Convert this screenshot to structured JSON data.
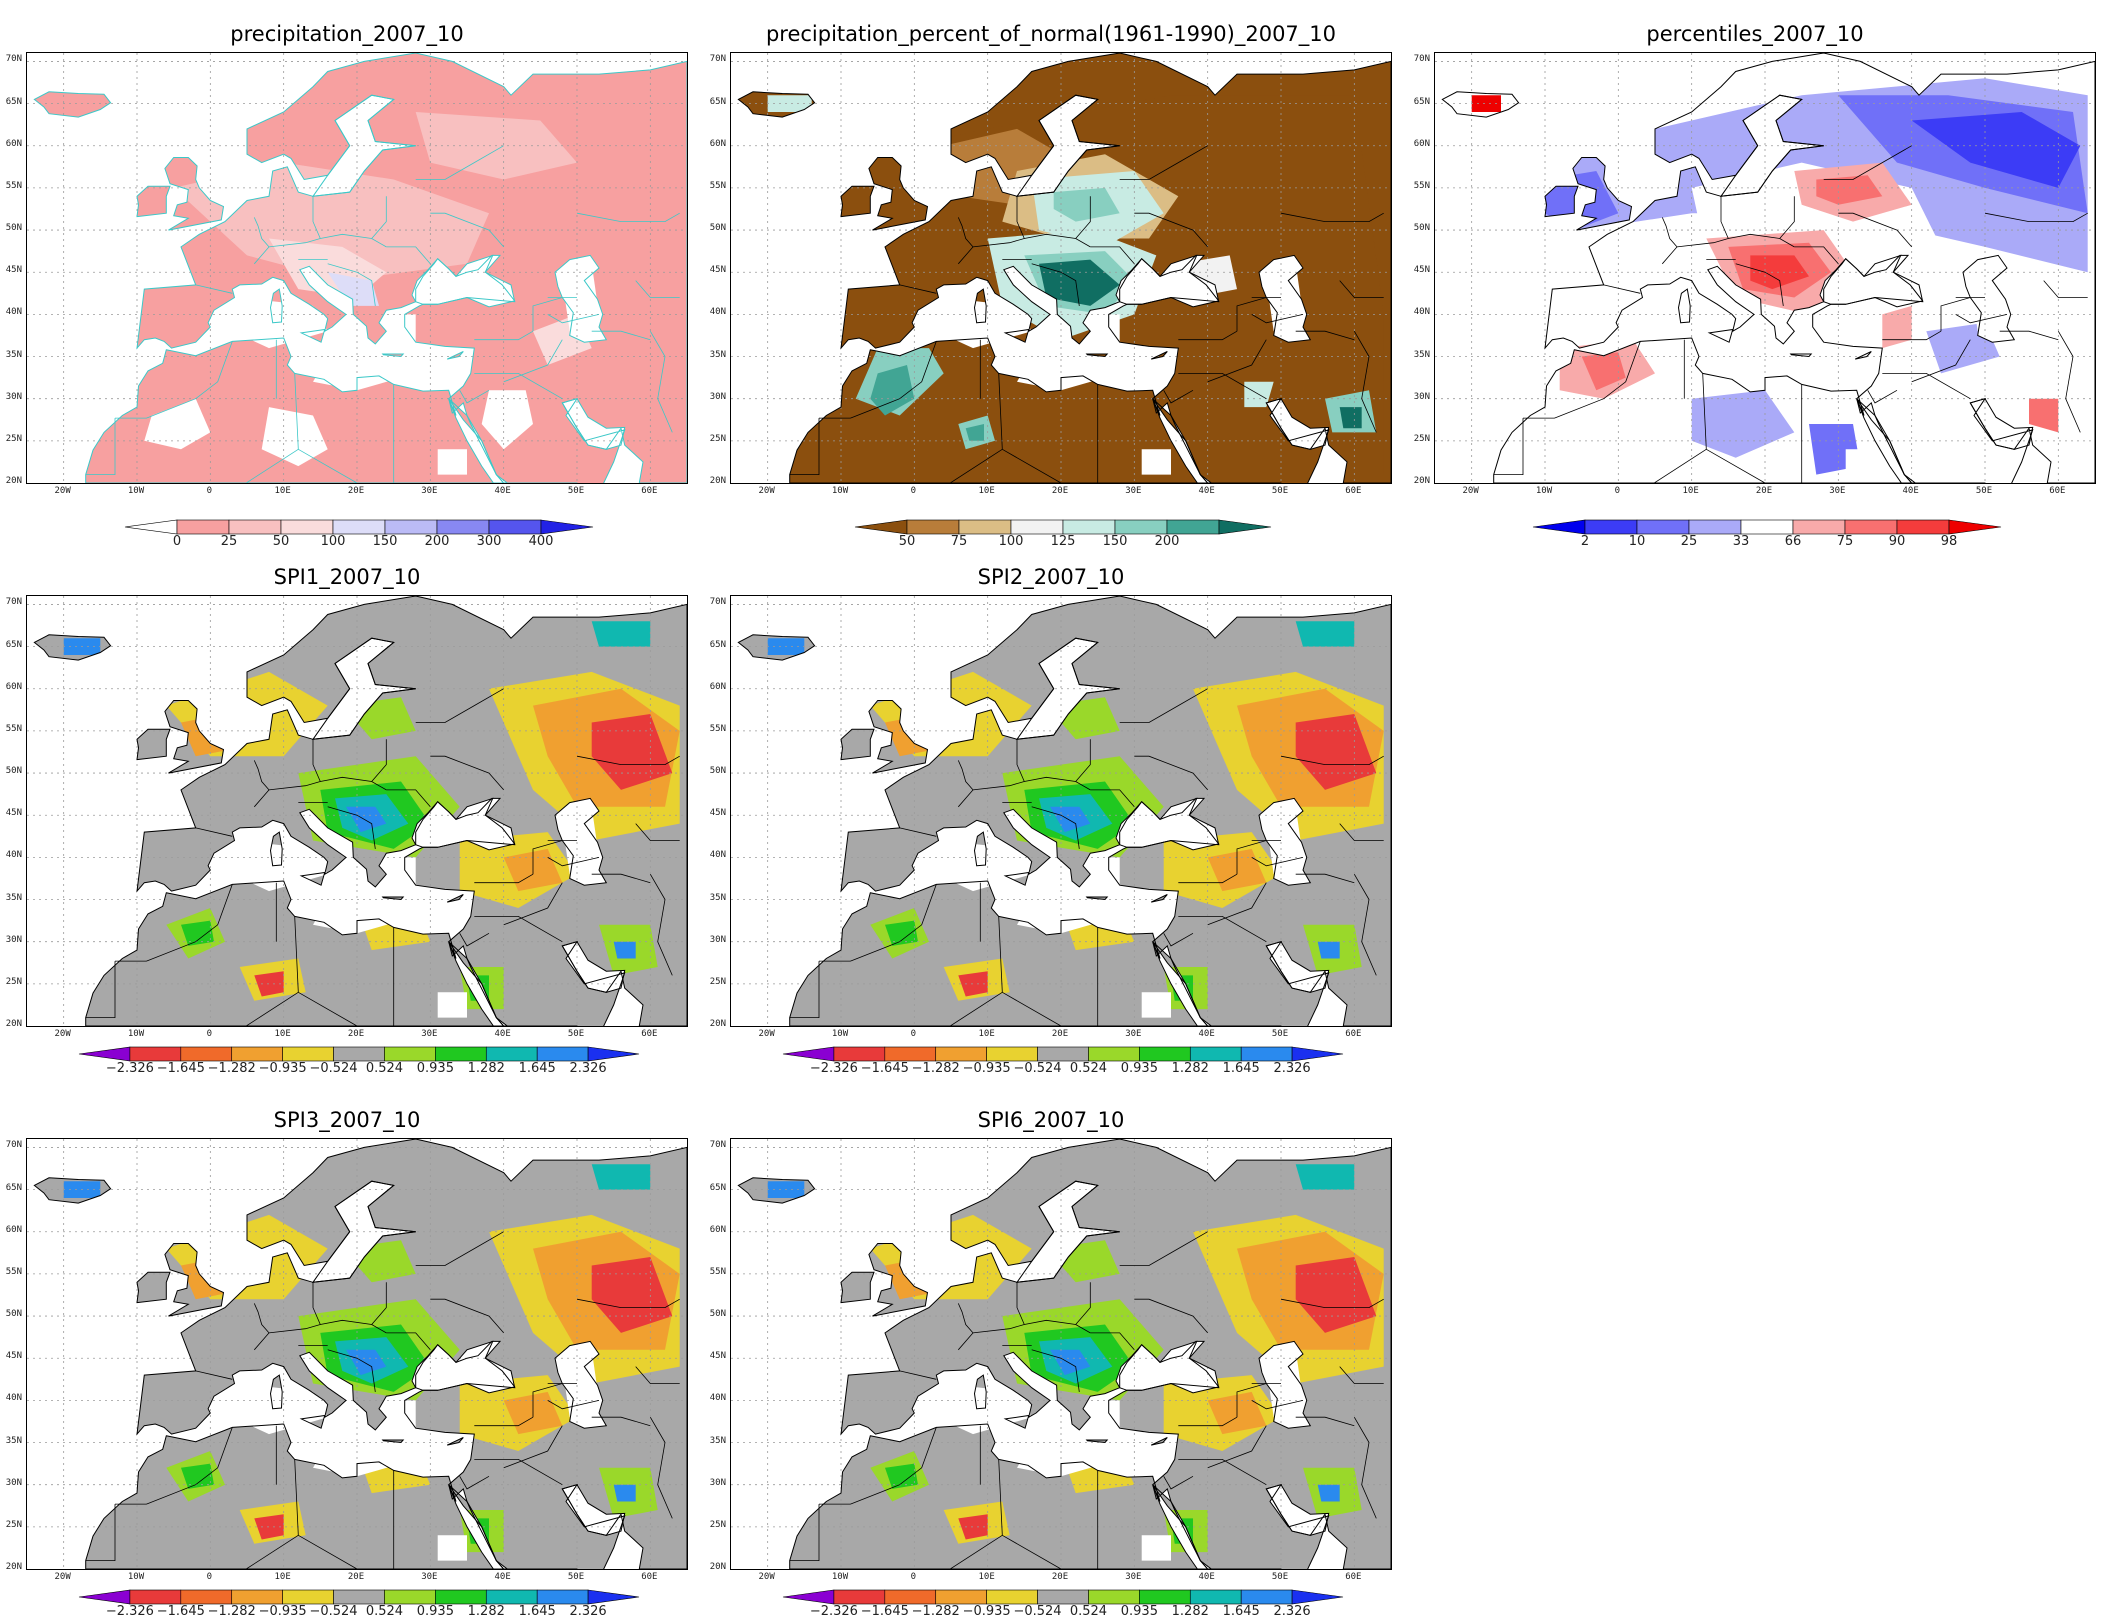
{
  "panels": [
    {
      "title": "precipitation_2007_10",
      "palette": "precip",
      "colorbar": {
        "labels": [
          "0",
          "25",
          "50",
          "100",
          "150",
          "200",
          "300",
          "400"
        ],
        "colors": [
          "#ffffff",
          "#f7a0a0",
          "#f8c0c0",
          "#fadcdc",
          "#ddddf8",
          "#bbbbf6",
          "#8888f2",
          "#5555ee",
          "#2222e6"
        ]
      }
    },
    {
      "title": "precipitation_percent_of_normal(1961-1990)_2007_10",
      "palette": "pct",
      "colorbar": {
        "labels": [
          "50",
          "75",
          "100",
          "125",
          "150",
          "200"
        ],
        "colors": [
          "#8b4f0e",
          "#b87d3a",
          "#dbbd85",
          "#f2f2f2",
          "#c8ebe3",
          "#88cfc0",
          "#41a594",
          "#106e62"
        ]
      }
    },
    {
      "title": "percentiles_2007_10",
      "palette": "perc",
      "colorbar": {
        "labels": [
          "2",
          "10",
          "25",
          "33",
          "66",
          "75",
          "90",
          "98"
        ],
        "colors": [
          "#0000ee",
          "#3c3cf6",
          "#7070f8",
          "#aaaaf8",
          "#ffffff",
          "#f8aaaa",
          "#f87070",
          "#f43c3c",
          "#ee0000"
        ]
      }
    },
    {
      "title": "SPI1_2007_10",
      "palette": "spi",
      "colorbar": {
        "labels": [
          "−2.326",
          "−1.645",
          "−1.282",
          "−0.935",
          "−0.524",
          "0.524",
          "0.935",
          "1.282",
          "1.645",
          "2.326"
        ],
        "colors": [
          "#8a00d2",
          "#e83a3a",
          "#f06a2a",
          "#f0a030",
          "#e8d230",
          "#a8a8a8",
          "#9ad82a",
          "#20c820",
          "#10b8b0",
          "#2a8aee",
          "#1a30f0"
        ]
      }
    },
    {
      "title": "SPI2_2007_10",
      "palette": "spi",
      "colorbar": {
        "labels": [
          "−2.326",
          "−1.645",
          "−1.282",
          "−0.935",
          "−0.524",
          "0.524",
          "0.935",
          "1.282",
          "1.645",
          "2.326"
        ],
        "colors": [
          "#8a00d2",
          "#e83a3a",
          "#f06a2a",
          "#f0a030",
          "#e8d230",
          "#a8a8a8",
          "#9ad82a",
          "#20c820",
          "#10b8b0",
          "#2a8aee",
          "#1a30f0"
        ]
      }
    },
    {
      "title": "SPI3_2007_10",
      "palette": "spi",
      "colorbar": {
        "labels": [
          "−2.326",
          "−1.645",
          "−1.282",
          "−0.935",
          "−0.524",
          "0.524",
          "0.935",
          "1.282",
          "1.645",
          "2.326"
        ],
        "colors": [
          "#8a00d2",
          "#e83a3a",
          "#f06a2a",
          "#f0a030",
          "#e8d230",
          "#a8a8a8",
          "#9ad82a",
          "#20c820",
          "#10b8b0",
          "#2a8aee",
          "#1a30f0"
        ]
      }
    },
    {
      "title": "SPI6_2007_10",
      "palette": "spi",
      "colorbar": {
        "labels": [
          "−2.326",
          "−1.645",
          "−1.282",
          "−0.935",
          "−0.524",
          "0.524",
          "0.935",
          "1.282",
          "1.645",
          "2.326"
        ],
        "colors": [
          "#8a00d2",
          "#e83a3a",
          "#f06a2a",
          "#f0a030",
          "#e8d230",
          "#a8a8a8",
          "#9ad82a",
          "#20c820",
          "#10b8b0",
          "#2a8aee",
          "#1a30f0"
        ]
      }
    }
  ],
  "lat_labels": [
    "70N",
    "65N",
    "60N",
    "55N",
    "50N",
    "45N",
    "40N",
    "35N",
    "30N",
    "25N",
    "20N"
  ],
  "lon_labels": [
    "20W",
    "10W",
    "0",
    "10E",
    "20E",
    "30E",
    "40E",
    "50E",
    "60E"
  ]
}
